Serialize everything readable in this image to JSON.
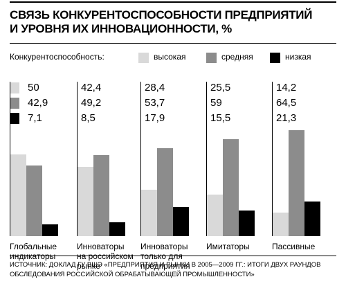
{
  "chart_data": {
    "type": "bar",
    "title": "СВЯЗЬ КОНКУРЕНТОСПОСОБНОСТИ ПРЕДПРИЯТИЙ\nИ УРОВНЯ ИХ ИННОВАЦИОННОСТИ, %",
    "legend_title": "Конкурентоспособность:",
    "categories": [
      "Глобальные\nиндикаторы",
      "Инноваторы\nна российском\nрынке",
      "Инноваторы\nтолько для\nпредприятия",
      "Имитаторы",
      "Пассивные"
    ],
    "series": [
      {
        "name": "высокая",
        "color": "#d9d9d9",
        "values": [
          50,
          42.4,
          28.4,
          25.5,
          14.2
        ],
        "value_labels": [
          "50",
          "42,4",
          "28,4",
          "25,5",
          "14,2"
        ]
      },
      {
        "name": "средняя",
        "color": "#8c8c8c",
        "values": [
          42.9,
          49.2,
          53.7,
          59,
          64.5
        ],
        "value_labels": [
          "42,9",
          "49,2",
          "53,7",
          "59",
          "64,5"
        ]
      },
      {
        "name": "низкая",
        "color": "#000000",
        "values": [
          7.1,
          8.5,
          17.9,
          15.5,
          21.3
        ],
        "value_labels": [
          "7,1",
          "8,5",
          "17,9",
          "15,5",
          "21,3"
        ]
      }
    ],
    "source": "ИСТОЧНИК: ДОКЛАД ГУ ВШЭ «ПРЕДПРИЯТИЯ И РЫНКИ В 2005—2009 ГГ.: ИТОГИ ДВУХ РАУНДОВ ОБСЛЕДОВАНИЯ РОССИЙСКОЙ ОБРАБАТЫВАЮЩЕЙ ПРОМЫШЛЕННОСТИ»"
  }
}
